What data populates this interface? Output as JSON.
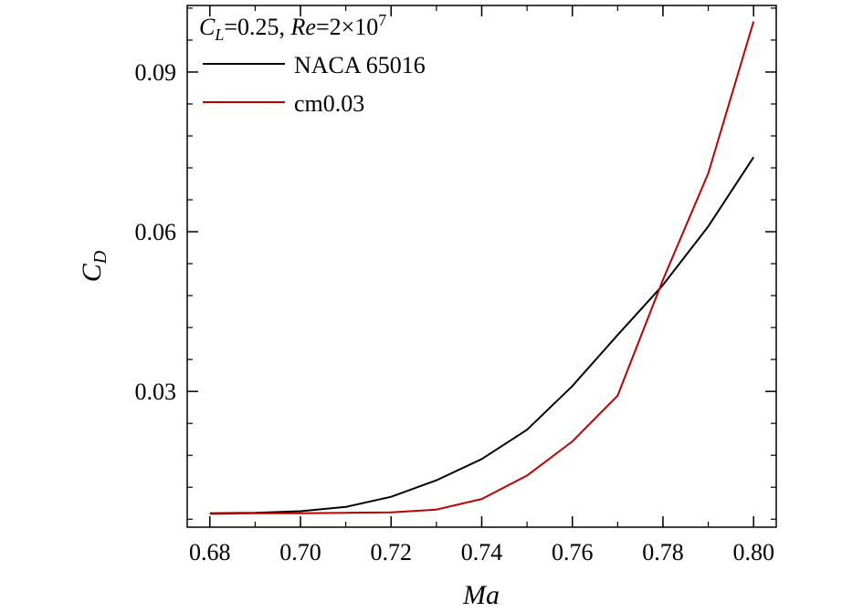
{
  "chart_data": {
    "type": "line",
    "xlabel": "Ma",
    "ylabel": {
      "main": "C",
      "sub": "D"
    },
    "xlim": [
      0.675,
      0.805
    ],
    "ylim": [
      0.0045,
      0.1025
    ],
    "xticks": [
      "0.68",
      "0.70",
      "0.72",
      "0.74",
      "0.76",
      "0.78",
      "0.80"
    ],
    "yticks": [
      "0.03",
      "0.06",
      "0.09"
    ],
    "grid": false,
    "legend_position": "top-left",
    "annotation": {
      "cl_main": "C",
      "cl_sub": "L",
      "cl_value": "=0.25, ",
      "re_label": "Re",
      "re_value": "=2×10",
      "re_exp": "7"
    },
    "series": [
      {
        "name": "NACA 65016",
        "color": "#000000",
        "x": [
          0.68,
          0.69,
          0.7,
          0.71,
          0.72,
          0.73,
          0.74,
          0.75,
          0.76,
          0.77,
          0.78,
          0.79,
          0.8
        ],
        "y": [
          0.0071,
          0.0072,
          0.0075,
          0.0083,
          0.0102,
          0.0133,
          0.0173,
          0.0228,
          0.031,
          0.0406,
          0.05,
          0.061,
          0.074
        ]
      },
      {
        "name": "cm0.03",
        "color": "#c00000",
        "x": [
          0.68,
          0.69,
          0.7,
          0.71,
          0.72,
          0.73,
          0.74,
          0.75,
          0.76,
          0.77,
          0.78,
          0.79,
          0.8
        ],
        "y": [
          0.007,
          0.0071,
          0.0071,
          0.0072,
          0.0073,
          0.0078,
          0.0098,
          0.0142,
          0.0206,
          0.0292,
          0.051,
          0.071,
          0.0995
        ]
      }
    ]
  }
}
